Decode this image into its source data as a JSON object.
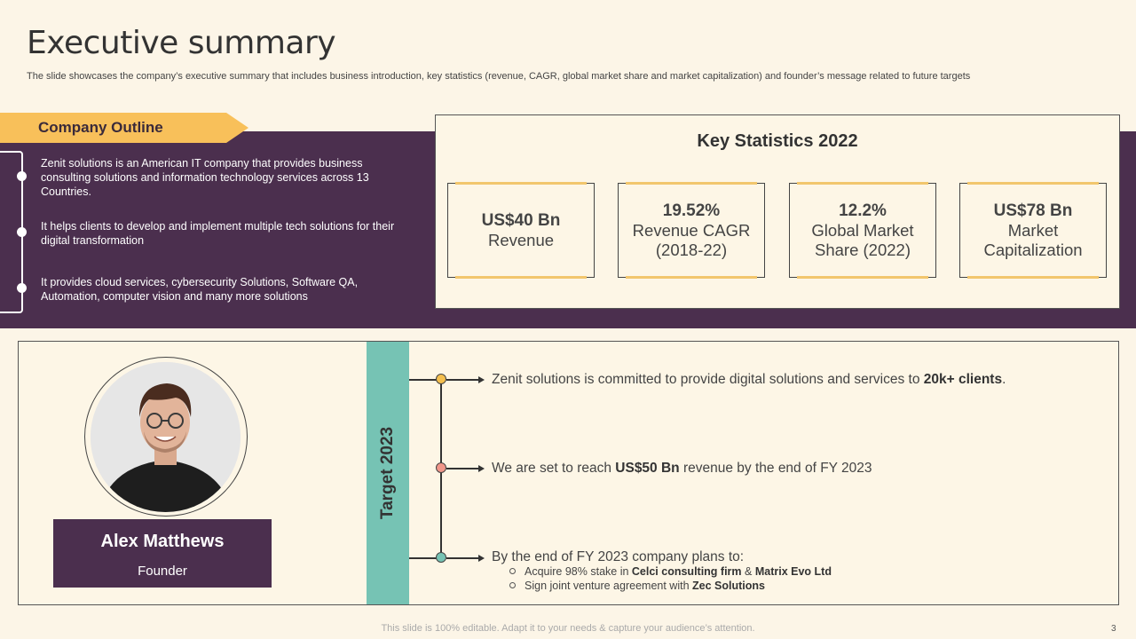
{
  "slide": {
    "title": "Executive summary",
    "subtitle": "The slide showcases the company’s executive summary that includes business introduction, key statistics (revenue, CAGR, global market share and market capitalization) and founder’s message related to future targets"
  },
  "outline": {
    "heading": "Company Outline",
    "items": [
      "Zenit solutions is an American IT company that provides  business consulting solutions and information technology services across 13 Countries.",
      "It helps clients to develop  and implement multiple tech solutions for their digital transformation",
      "It provides  cloud services, cybersecurity Solutions, Software QA, Automation, computer vision and many more solutions"
    ]
  },
  "stats": {
    "heading": "Key Statistics  2022",
    "cards": [
      {
        "value": "US$40 Bn",
        "label": "Revenue"
      },
      {
        "value": "19.52%",
        "label": "Revenue CAGR (2018-22)"
      },
      {
        "value": "12.2%",
        "label": "Global Market Share (2022)"
      },
      {
        "value": "US$78 Bn",
        "label": "Market Capitalization"
      }
    ]
  },
  "founder": {
    "name": "Alex Matthews",
    "role": "Founder"
  },
  "targets": {
    "heading": "Target 2023",
    "items": [
      {
        "pre": "Zenit solutions is committed to provide digital solutions and services to ",
        "bold": "20k+ clients",
        "post": ".",
        "color": "#f4bf4f"
      },
      {
        "pre": "We are set to reach ",
        "bold": "US$50 Bn",
        "post": " revenue  by the end of FY 2023",
        "color": "#f0968a"
      },
      {
        "pre": "By the end of FY 2023 company plans to:",
        "bold": "",
        "post": "",
        "color": "#76c3b4"
      }
    ],
    "sub_items": [
      {
        "pre": "Acquire 98% stake in ",
        "bold1": "Celci consulting  firm",
        "mid": " & ",
        "bold2": "Matrix Evo Ltd"
      },
      {
        "pre": "Sign joint venture  agreement  with ",
        "bold1": "Zec  Solutions",
        "mid": "",
        "bold2": ""
      }
    ]
  },
  "footer": {
    "text": "This slide is 100% editable. Adapt it to your needs & capture your audience’s attention.",
    "page": "3"
  }
}
